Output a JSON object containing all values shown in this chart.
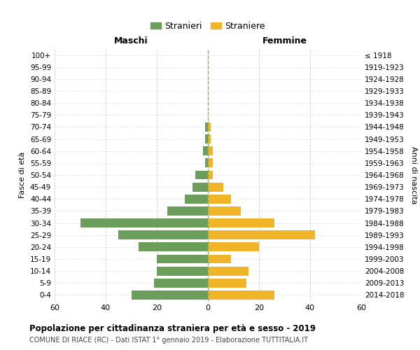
{
  "age_groups": [
    "0-4",
    "5-9",
    "10-14",
    "15-19",
    "20-24",
    "25-29",
    "30-34",
    "35-39",
    "40-44",
    "45-49",
    "50-54",
    "55-59",
    "60-64",
    "65-69",
    "70-74",
    "75-79",
    "80-84",
    "85-89",
    "90-94",
    "95-99",
    "100+"
  ],
  "birth_years": [
    "2014-2018",
    "2009-2013",
    "2004-2008",
    "1999-2003",
    "1994-1998",
    "1989-1993",
    "1984-1988",
    "1979-1983",
    "1974-1978",
    "1969-1973",
    "1964-1968",
    "1959-1963",
    "1954-1958",
    "1949-1953",
    "1944-1948",
    "1939-1943",
    "1934-1938",
    "1929-1933",
    "1924-1928",
    "1919-1923",
    "≤ 1918"
  ],
  "maschi": [
    30,
    21,
    20,
    20,
    27,
    35,
    50,
    16,
    9,
    6,
    5,
    1,
    2,
    1,
    1,
    0,
    0,
    0,
    0,
    0,
    0
  ],
  "femmine": [
    26,
    15,
    16,
    9,
    20,
    42,
    26,
    13,
    9,
    6,
    2,
    2,
    2,
    1,
    1,
    0,
    0,
    0,
    0,
    0,
    0
  ],
  "maschi_color": "#6a9e5a",
  "femmine_color": "#f0b429",
  "grid_color": "#cccccc",
  "center_line_color": "#aaa830",
  "title": "Popolazione per cittadinanza straniera per età e sesso - 2019",
  "subtitle": "COMUNE DI RIACE (RC) - Dati ISTAT 1° gennaio 2019 - Elaborazione TUTTITALIA.IT",
  "xlabel_left": "Maschi",
  "xlabel_right": "Femmine",
  "ylabel_left": "Fasce di età",
  "ylabel_right": "Anni di nascita",
  "legend_stranieri": "Stranieri",
  "legend_straniere": "Straniere",
  "xlim": 60,
  "bar_height": 0.75
}
